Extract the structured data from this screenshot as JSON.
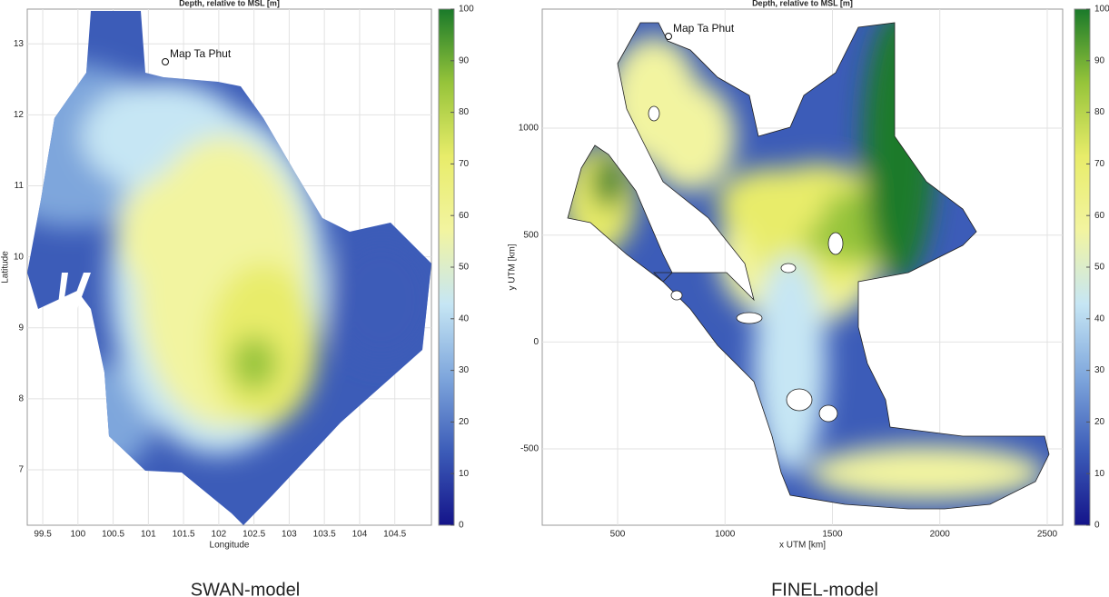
{
  "chart_data": [
    {
      "type": "map",
      "title": "Depth, relative to MSL [m]",
      "xlabel": "Longitude",
      "ylabel": "Latitude",
      "xlim": [
        99.28,
        105.02
      ],
      "ylim": [
        6.22,
        13.49
      ],
      "xticks": [
        99.5,
        100,
        100.5,
        101,
        101.5,
        102,
        102.5,
        103,
        103.5,
        104,
        104.5
      ],
      "yticks": [
        7,
        8,
        9,
        10,
        11,
        12,
        13
      ],
      "clim": [
        0,
        100
      ],
      "cticks": [
        0,
        10,
        20,
        30,
        40,
        50,
        60,
        70,
        80,
        90,
        100
      ],
      "colormap": [
        "#14148a",
        "#3c5cb8",
        "#7ea6dc",
        "#c6e6f4",
        "#f2f4a0",
        "#e8ec6a",
        "#96c43a",
        "#1a7a2a"
      ],
      "grid": true,
      "annotation": "Map Ta Phut",
      "caption": "SWAN-model"
    },
    {
      "type": "map",
      "title": "Depth, relative to MSL [m]",
      "xlabel": "x UTM [km]",
      "ylabel": "y UTM [km]",
      "xlim": [
        149,
        2572
      ],
      "ylim": [
        -857,
        1557
      ],
      "xticks": [
        500,
        1000,
        1500,
        2000,
        2500
      ],
      "yticks": [
        -500,
        0,
        500,
        1000
      ],
      "clim": [
        0,
        100
      ],
      "cticks": [
        0,
        10,
        20,
        30,
        40,
        50,
        60,
        70,
        80,
        90,
        100
      ],
      "colormap": [
        "#14148a",
        "#3c5cb8",
        "#7ea6dc",
        "#c6e6f4",
        "#f2f4a0",
        "#e8ec6a",
        "#96c43a",
        "#1a7a2a"
      ],
      "grid": true,
      "annotation": "Map Ta Phut",
      "caption": "FINEL-model"
    }
  ]
}
